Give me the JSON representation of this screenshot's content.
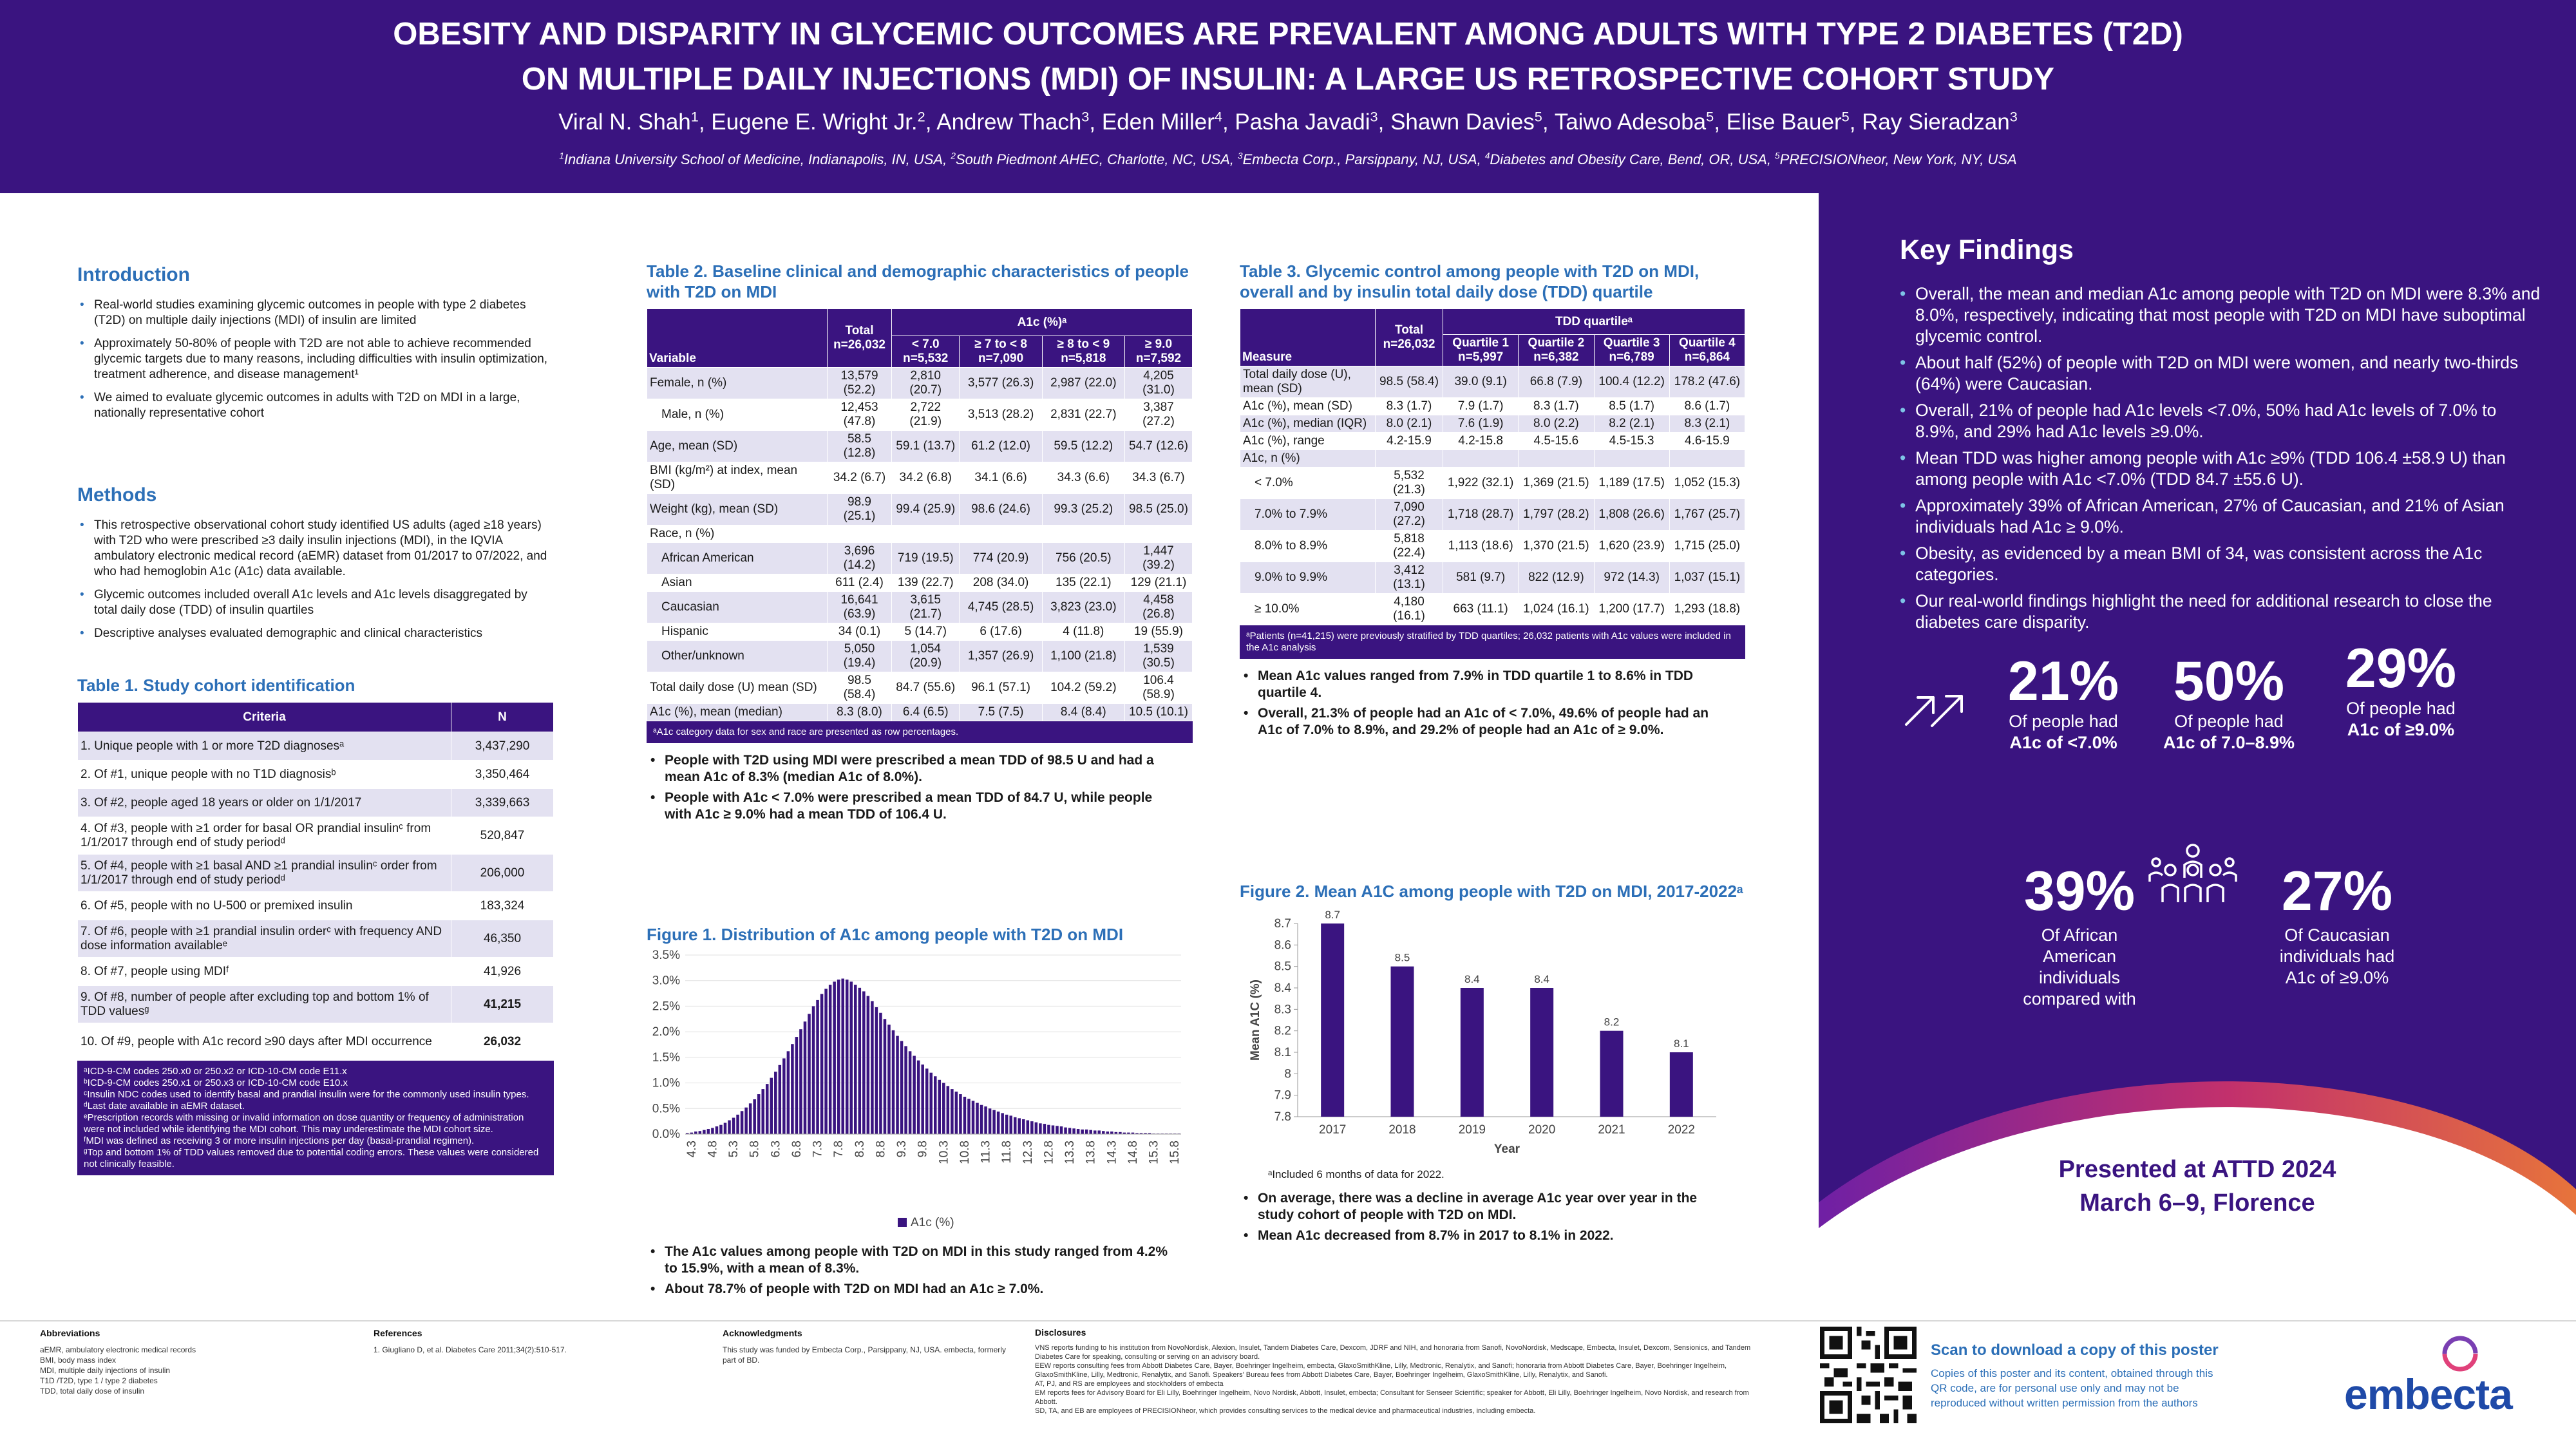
{
  "header": {
    "title_line1": "OBESITY AND DISPARITY IN GLYCEMIC OUTCOMES ARE PREVALENT AMONG ADULTS WITH TYPE 2 DIABETES (T2D)",
    "title_line2": "ON MULTIPLE DAILY INJECTIONS (MDI) OF INSULIN: A LARGE US RETROSPECTIVE COHORT STUDY",
    "authors": [
      {
        "name": "Viral N. Shah",
        "sup": "1"
      },
      {
        "name": "Eugene E. Wright Jr.",
        "sup": "2"
      },
      {
        "name": "Andrew Thach",
        "sup": "3"
      },
      {
        "name": "Eden Miller",
        "sup": "4"
      },
      {
        "name": "Pasha Javadi",
        "sup": "3"
      },
      {
        "name": "Shawn Davies",
        "sup": "5"
      },
      {
        "name": "Taiwo Adesoba",
        "sup": "5"
      },
      {
        "name": "Elise Bauer",
        "sup": "5"
      },
      {
        "name": "Ray Sieradzan",
        "sup": "3"
      }
    ],
    "affiliations": [
      {
        "sup": "1",
        "text": "Indiana University School of Medicine, Indianapolis, IN, USA, "
      },
      {
        "sup": "2",
        "text": "South Piedmont AHEC, Charlotte, NC, USA, "
      },
      {
        "sup": "3",
        "text": "Embecta Corp., Parsippany, NJ, USA, "
      },
      {
        "sup": "4",
        "text": "Diabetes and Obesity Care, Bend, OR, USA, "
      },
      {
        "sup": "5",
        "text": "PRECISIONheor, New York, NY, USA"
      }
    ]
  },
  "intro": {
    "heading": "Introduction",
    "bullets": [
      "Real-world studies examining glycemic outcomes in people with type 2 diabetes (T2D) on multiple daily injections (MDI) of insulin are limited",
      "Approximately 50-80% of people with T2D are not able to achieve recommended glycemic targets due to many reasons, including difficulties with insulin optimization, treatment adherence, and disease management¹",
      "We aimed to evaluate glycemic outcomes in adults with T2D on MDI in a large, nationally representative cohort"
    ]
  },
  "methods": {
    "heading": "Methods",
    "bullets": [
      "This retrospective observational cohort study identified US adults (aged ≥18 years) with T2D who were prescribed ≥3 daily insulin injections (MDI), in the IQVIA ambulatory electronic medical record (aEMR) dataset from 01/2017 to 07/2022, and who had hemoglobin A1c (A1c) data available.",
      "Glycemic outcomes included overall A1c levels and A1c levels disaggregated by total daily dose (TDD) of insulin quartiles",
      "Descriptive analyses evaluated demographic and clinical characteristics"
    ]
  },
  "table1": {
    "title": "Table 1. Study cohort identification",
    "headers": [
      "Criteria",
      "N"
    ],
    "rows": [
      [
        "1. Unique people with 1 or more T2D diagnosesᵃ",
        "3,437,290"
      ],
      [
        "2. Of #1, unique people with no T1D diagnosisᵇ",
        "3,350,464"
      ],
      [
        "3. Of #2, people aged 18 years or older on 1/1/2017",
        "3,339,663"
      ],
      [
        "4. Of #3, people with ≥1 order for basal OR prandial insulinᶜ from 1/1/2017 through end of study periodᵈ",
        "520,847"
      ],
      [
        "5. Of #4, people with ≥1 basal AND ≥1 prandial insulinᶜ order from 1/1/2017 through end of study periodᵈ",
        "206,000"
      ],
      [
        "6. Of #5, people with no U-500 or premixed insulin",
        "183,324"
      ],
      [
        "7. Of #6, people with ≥1 prandial insulin orderᶜ with frequency AND dose information availableᵉ",
        "46,350"
      ],
      [
        "8. Of #7, people using MDIᶠ",
        "41,926"
      ],
      [
        "9. Of #8, number of people after excluding top and bottom 1% of TDD valuesᵍ",
        "41,215"
      ],
      [
        "10. Of #9, people with A1c record ≥90 days after MDI occurrence",
        "26,032"
      ]
    ],
    "footnotes": [
      "ᵃICD-9-CM codes 250.x0 or 250.x2 or ICD-10-CM code E11.x",
      "ᵇICD-9-CM codes 250.x1 or 250.x3 or ICD-10-CM code E10.x",
      "ᶜInsulin NDC codes used to identify basal and prandial insulin were for the commonly used insulin types.",
      "ᵈLast date available in aEMR dataset.",
      "ᵉPrescription records with missing or invalid information on dose quantity or frequency of administration were not included while identifying the MDI cohort. This may underestimate the MDI cohort size.",
      "ᶠMDI was defined as receiving 3 or more insulin injections per day (basal-prandial regimen).",
      "ᵍTop and bottom 1% of TDD values removed due to potential coding errors. These values were considered not clinically feasible."
    ]
  },
  "table2": {
    "title": "Table 2. Baseline clinical and demographic characteristics of people with T2D on MDI",
    "h_variable": "Variable",
    "h_total": "Total n=26,032",
    "h_group": "A1c (%)ᵃ",
    "h_cols": [
      "< 7.0 n=5,532",
      "≥ 7 to < 8 n=7,090",
      "≥ 8 to < 9 n=5,818",
      "≥ 9.0 n=7,592"
    ],
    "rows": [
      {
        "label": "Female, n (%)",
        "v": [
          "13,579 (52.2)",
          "2,810 (20.7)",
          "3,577 (26.3)",
          "2,987 (22.0)",
          "4,205 (31.0)"
        ]
      },
      {
        "label": "Male, n (%)",
        "ind": true,
        "v": [
          "12,453 (47.8)",
          "2,722 (21.9)",
          "3,513 (28.2)",
          "2,831 (22.7)",
          "3,387 (27.2)"
        ]
      },
      {
        "label": "Age, mean (SD)",
        "v": [
          "58.5 (12.8)",
          "59.1 (13.7)",
          "61.2 (12.0)",
          "59.5 (12.2)",
          "54.7 (12.6)"
        ]
      },
      {
        "label": "BMI (kg/m²) at index, mean (SD)",
        "v": [
          "34.2 (6.7)",
          "34.2 (6.8)",
          "34.1 (6.6)",
          "34.3 (6.6)",
          "34.3 (6.7)"
        ]
      },
      {
        "label": "Weight (kg), mean (SD)",
        "v": [
          "98.9 (25.1)",
          "99.4 (25.9)",
          "98.6 (24.6)",
          "99.3 (25.2)",
          "98.5 (25.0)"
        ]
      },
      {
        "label": "Race, n (%)",
        "v": [
          "",
          "",
          "",
          "",
          ""
        ]
      },
      {
        "label": "African American",
        "ind": true,
        "v": [
          "3,696 (14.2)",
          "719 (19.5)",
          "774 (20.9)",
          "756 (20.5)",
          "1,447 (39.2)"
        ]
      },
      {
        "label": "Asian",
        "ind": true,
        "v": [
          "611 (2.4)",
          "139 (22.7)",
          "208 (34.0)",
          "135 (22.1)",
          "129 (21.1)"
        ]
      },
      {
        "label": "Caucasian",
        "ind": true,
        "v": [
          "16,641 (63.9)",
          "3,615 (21.7)",
          "4,745 (28.5)",
          "3,823 (23.0)",
          "4,458 (26.8)"
        ]
      },
      {
        "label": "Hispanic",
        "ind": true,
        "v": [
          "34 (0.1)",
          "5 (14.7)",
          "6 (17.6)",
          "4 (11.8)",
          "19 (55.9)"
        ]
      },
      {
        "label": "Other/unknown",
        "ind": true,
        "v": [
          "5,050 (19.4)",
          "1,054 (20.9)",
          "1,357 (26.9)",
          "1,100 (21.8)",
          "1,539 (30.5)"
        ]
      },
      {
        "label": "Total daily dose (U) mean (SD)",
        "v": [
          "98.5 (58.4)",
          "84.7 (55.6)",
          "96.1 (57.1)",
          "104.2 (59.2)",
          "106.4 (58.9)"
        ]
      },
      {
        "label": "A1c (%), mean (median)",
        "v": [
          "8.3 (8.0)",
          "6.4 (6.5)",
          "7.5 (7.5)",
          "8.4 (8.4)",
          "10.5 (10.1)"
        ]
      }
    ],
    "footnote": "ᵃA1c category data for sex and race are presented as row percentages.",
    "bullets": [
      "People with T2D using MDI were prescribed a mean TDD of 98.5 U and had a mean A1c of 8.3% (median A1c of 8.0%).",
      "People with A1c < 7.0% were prescribed a mean TDD of 84.7 U, while people with A1c ≥ 9.0% had a mean TDD of 106.4 U."
    ]
  },
  "figure1": {
    "title": "Figure 1. Distribution of A1c among people with T2D on MDI",
    "bullets": [
      "The A1c values among people with T2D on MDI in this study ranged from 4.2% to 15.9%, with a mean of 8.3%.",
      "About 78.7% of people with T2D on MDI had an A1c ≥ 7.0%."
    ]
  },
  "table3": {
    "title": "Table 3. Glycemic control among people with T2D on MDI, overall and by insulin total daily dose (TDD) quartile",
    "h_measure": "Measure",
    "h_total": "Total n=26,032",
    "h_group": "TDD quartileᵃ",
    "h_cols": [
      "Quartile 1 n=5,997",
      "Quartile 2 n=6,382",
      "Quartile 3 n=6,789",
      "Quartile 4 n=6,864"
    ],
    "rows": [
      {
        "label": "Total daily dose (U), mean (SD)",
        "v": [
          "98.5 (58.4)",
          "39.0 (9.1)",
          "66.8 (7.9)",
          "100.4 (12.2)",
          "178.2 (47.6)"
        ]
      },
      {
        "label": "A1c (%), mean (SD)",
        "v": [
          "8.3 (1.7)",
          "7.9 (1.7)",
          "8.3 (1.7)",
          "8.5 (1.7)",
          "8.6 (1.7)"
        ]
      },
      {
        "label": "A1c (%), median (IQR)",
        "v": [
          "8.0 (2.1)",
          "7.6 (1.9)",
          "8.0 (2.2)",
          "8.2 (2.1)",
          "8.3 (2.1)"
        ]
      },
      {
        "label": "A1c (%), range",
        "v": [
          "4.2-15.9",
          "4.2-15.8",
          "4.5-15.6",
          "4.5-15.3",
          "4.6-15.9"
        ]
      },
      {
        "label": "A1c, n (%)",
        "v": [
          "",
          "",
          "",
          "",
          ""
        ]
      },
      {
        "label": "< 7.0%",
        "ind": true,
        "v": [
          "5,532 (21.3)",
          "1,922 (32.1)",
          "1,369 (21.5)",
          "1,189 (17.5)",
          "1,052 (15.3)"
        ]
      },
      {
        "label": "7.0% to 7.9%",
        "ind": true,
        "v": [
          "7,090 (27.2)",
          "1,718 (28.7)",
          "1,797 (28.2)",
          "1,808 (26.6)",
          "1,767 (25.7)"
        ]
      },
      {
        "label": "8.0% to 8.9%",
        "ind": true,
        "v": [
          "5,818 (22.4)",
          "1,113 (18.6)",
          "1,370 (21.5)",
          "1,620 (23.9)",
          "1,715 (25.0)"
        ]
      },
      {
        "label": "9.0% to 9.9%",
        "ind": true,
        "v": [
          "3,412 (13.1)",
          "581 (9.7)",
          "822 (12.9)",
          "972 (14.3)",
          "1,037 (15.1)"
        ]
      },
      {
        "label": "≥ 10.0%",
        "ind": true,
        "v": [
          "4,180 (16.1)",
          "663 (11.1)",
          "1,024 (16.1)",
          "1,200 (17.7)",
          "1,293 (18.8)"
        ]
      }
    ],
    "footnote": "ᵃPatients (n=41,215) were previously stratified by TDD quartiles; 26,032 patients with A1c values were included in the A1c analysis",
    "bullets": [
      "Mean A1c values ranged from 7.9% in TDD quartile 1 to 8.6% in TDD quartile 4.",
      "Overall, 21.3% of people had an A1c of < 7.0%, 49.6% of people had an A1c of 7.0% to 8.9%, and 29.2% of people had an A1c of ≥ 9.0%."
    ]
  },
  "figure2": {
    "title": "Figure 2. Mean A1C among people with T2D on MDI, 2017-2022ᵃ",
    "footnote": "ᵃIncluded 6 months of data for 2022.",
    "bullets": [
      "On average, there was a decline in average A1c year over year in the study cohort of people with T2D on MDI.",
      "Mean A1c decreased from 8.7% in 2017 to 8.1% in 2022."
    ]
  },
  "chart_data": [
    {
      "type": "bar",
      "title": "Figure 1. Distribution of A1c among people with T2D on MDI",
      "legend": "A1c (%)",
      "legend_position": "bottom",
      "ylim": [
        0,
        3.5
      ],
      "y_ticks": [
        "0.0%",
        "0.5%",
        "1.0%",
        "1.5%",
        "2.0%",
        "2.5%",
        "3.0%",
        "3.5%"
      ],
      "x_ticks": [
        "4.3",
        "4.8",
        "5.3",
        "5.8",
        "6.3",
        "6.8",
        "7.3",
        "7.8",
        "8.3",
        "8.8",
        "9.3",
        "9.8",
        "10.3",
        "10.8",
        "11.3",
        "11.8",
        "12.3",
        "12.8",
        "13.3",
        "13.8",
        "14.3",
        "14.8",
        "15.3",
        "15.8"
      ],
      "x_start": 4.2,
      "x_step": 0.1,
      "values": [
        0.02,
        0.03,
        0.05,
        0.06,
        0.08,
        0.1,
        0.12,
        0.15,
        0.18,
        0.22,
        0.27,
        0.32,
        0.38,
        0.45,
        0.52,
        0.6,
        0.68,
        0.78,
        0.88,
        0.98,
        1.1,
        1.22,
        1.35,
        1.48,
        1.62,
        1.76,
        1.9,
        2.05,
        2.2,
        2.35,
        2.5,
        2.62,
        2.74,
        2.84,
        2.92,
        2.98,
        3.02,
        3.04,
        3.02,
        2.98,
        2.92,
        2.86,
        2.79,
        2.7,
        2.6,
        2.48,
        2.37,
        2.25,
        2.14,
        2.03,
        1.92,
        1.82,
        1.72,
        1.62,
        1.53,
        1.44,
        1.36,
        1.28,
        1.2,
        1.13,
        1.06,
        1.0,
        0.94,
        0.88,
        0.83,
        0.78,
        0.73,
        0.69,
        0.65,
        0.61,
        0.57,
        0.54,
        0.5,
        0.47,
        0.44,
        0.41,
        0.38,
        0.36,
        0.33,
        0.31,
        0.29,
        0.27,
        0.25,
        0.23,
        0.21,
        0.2,
        0.18,
        0.17,
        0.16,
        0.15,
        0.13,
        0.12,
        0.11,
        0.1,
        0.09,
        0.09,
        0.08,
        0.07,
        0.07,
        0.06,
        0.05,
        0.05,
        0.04,
        0.04,
        0.03,
        0.03,
        0.03,
        0.02,
        0.02,
        0.02,
        0.02,
        0.01,
        0.01,
        0.01,
        0.01,
        0.01,
        0.01,
        0.01
      ]
    },
    {
      "type": "bar",
      "title": "Figure 2. Mean A1C among people with T2D on MDI, 2017-2022ᵃ",
      "xlabel": "Year",
      "ylabel": "Mean A1C (%)",
      "ylim": [
        7.8,
        8.7
      ],
      "y_ticks": [
        "7.8",
        "7.9",
        "8",
        "8.1",
        "8.2",
        "8.3",
        "8.4",
        "8.5",
        "8.6",
        "8.7"
      ],
      "categories": [
        "2017",
        "2018",
        "2019",
        "2020",
        "2021",
        "2022"
      ],
      "values": [
        8.7,
        8.5,
        8.4,
        8.4,
        8.2,
        8.1
      ]
    }
  ],
  "key_findings": {
    "heading": "Key Findings",
    "bullets": [
      "Overall, the mean and median A1c among people with T2D on MDI were 8.3% and 8.0%, respectively, indicating that most people with T2D on MDI have suboptimal glycemic control.",
      "About half (52%) of people with T2D on MDI were women, and nearly two-thirds (64%) were Caucasian.",
      "Overall, 21% of people had A1c levels <7.0%, 50% had A1c levels of 7.0% to 8.9%, and 29% had A1c levels ≥9.0%.",
      "Mean TDD was higher among people with A1c ≥9% (TDD 106.4 ±58.9 U) than among people with A1c <7.0% (TDD 84.7 ±55.6 U).",
      "Approximately 39% of African American, 27% of Caucasian, and 21% of Asian individuals had A1c ≥ 9.0%.",
      "Obesity, as evidenced by a mean BMI of 34, was consistent across the A1c categories.",
      "Our real-world findings highlight the need for additional research to close the diabetes care disparity."
    ]
  },
  "stats": [
    {
      "pct": "21%",
      "l1": "Of people had",
      "l2": "A1c of <7.0%"
    },
    {
      "pct": "50%",
      "l1": "Of people had",
      "l2": "A1c of 7.0–8.9%"
    },
    {
      "pct": "29%",
      "l1": "Of people had",
      "l2": "A1c of ≥9.0%"
    },
    {
      "pct": "39%",
      "l1": "Of African American individuals compared with",
      "l2": ""
    },
    {
      "pct": "27%",
      "l1": "Of Caucasian individuals had A1c of ≥9.0%",
      "l2": ""
    }
  ],
  "presented": {
    "line1": "Presented at ATTD 2024",
    "line2": "March 6–9, Florence"
  },
  "colors": {
    "purple": "#3a1480",
    "blue": "#2c6fb7",
    "gradient": [
      "#6a1fa8",
      "#c2306c",
      "#e8753a"
    ]
  },
  "footer": {
    "abbr_h": "Abbreviations",
    "abbr": [
      "aEMR, ambulatory electronic medical records",
      "BMI, body mass index",
      "MDI, multiple daily injections of insulin",
      "T1D /T2D, type 1 / type 2 diabetes",
      "TDD, total daily dose of insulin"
    ],
    "ref_h": "References",
    "ref": "1. Giugliano D, et al. Diabetes Care 2011;34(2):510-517.",
    "ack_h": "Acknowledgments",
    "ack": "This study was funded by Embecta Corp., Parsippany, NJ, USA. embecta, formerly part of BD.",
    "disc_h": "Disclosures",
    "disc": [
      "VNS reports funding to his institution from NovoNordisk, Alexion, Insulet, Tandem Diabetes Care, Dexcom, JDRF and NIH, and honoraria from Sanofi, NovoNordisk, Medscape, Embecta, Insulet, Dexcom, Sensionics, and Tandem Diabetes Care for speaking, consulting or serving on an advisory board.",
      "EEW reports consulting fees from Abbott Diabetes Care, Bayer, Boehringer Ingelheim, embecta, GlaxoSmithKline, Lilly, Medtronic, Renalytix, and Sanofi; honoraria from Abbott Diabetes Care, Bayer, Boehringer Ingelheim, GlaxoSmithKline, Lilly, Medtronic, Renalytix, and Sanofi. Speakers' Bureau fees from Abbott Diabetes Care, Bayer, Boehringer Ingelheim, GlaxoSmithKline, Lilly, Renalytix, and Sanofi.",
      "AT, PJ, and RS are employees and stockholders of embecta",
      "EM reports fees for Advisory Board for Eli Lilly, Boehringer Ingelheim, Novo Nordisk, Abbott, Insulet, embecta; Consultant for Senseer Scientific; speaker for Abbott, Eli Lilly, Boehringer Ingelheim, Novo Nordisk, and research from Abbott.",
      "SD, TA, and EB are employees of PRECISIONheor, which provides consulting services to the medical device and pharmaceutical industries, including embecta."
    ],
    "scan_h": "Scan to download a copy of this poster",
    "scan": "Copies of this poster and its content, obtained through this QR code, are for personal use only and may not be reproduced without written permission from the authors",
    "logo": "embecta"
  }
}
